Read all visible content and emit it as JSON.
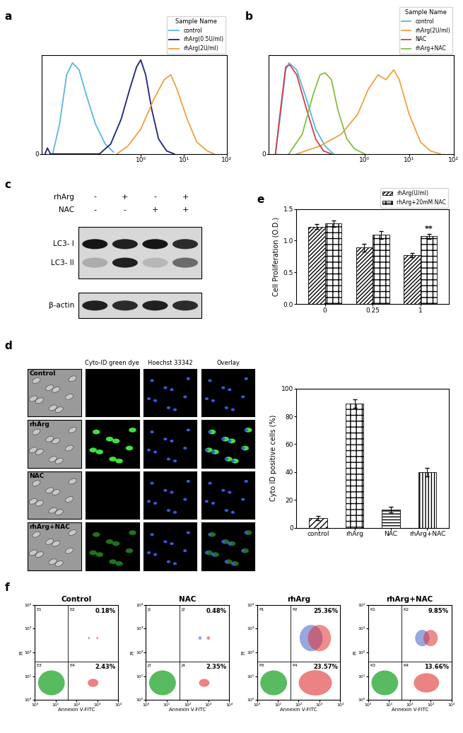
{
  "panel_labels": [
    "a",
    "b",
    "c",
    "d",
    "e",
    "f"
  ],
  "chart_data": [
    {
      "type": "line",
      "log": "x",
      "legend": "upper right",
      "legend_title": "Sample Name",
      "xlim": [
        0.005,
        100
      ],
      "xticks": [
        {
          "value": 1,
          "label": "10⁰"
        },
        {
          "value": 10,
          "label": "10¹"
        },
        {
          "value": 100,
          "label": "10²"
        }
      ],
      "ylim": [
        0,
        100
      ],
      "yticks": [
        0
      ],
      "series": [
        {
          "name": "control",
          "color": "#5bb5e8",
          "x": [
            0.009,
            0.013,
            0.019,
            0.026,
            0.037,
            0.054,
            0.089,
            0.15,
            0.23
          ],
          "values": [
            0,
            30,
            80,
            92,
            85,
            60,
            30,
            10,
            2
          ]
        },
        {
          "name": "rhArg(0.5U/ml)",
          "color": "#1a237e",
          "x": [
            0.006,
            0.0068,
            0.008,
            0.11,
            0.2,
            0.35,
            0.55,
            0.8,
            1.0,
            1.3,
            1.8,
            2.6,
            4,
            6
          ],
          "values": [
            0,
            6,
            0,
            0,
            10,
            35,
            65,
            88,
            95,
            80,
            45,
            15,
            3,
            0
          ]
        },
        {
          "name": "rhArg(2U/ml)",
          "color": "#f0a040",
          "x": [
            0.28,
            0.5,
            1,
            2,
            3.5,
            5,
            7,
            12,
            20,
            35,
            50
          ],
          "values": [
            0,
            8,
            25,
            55,
            75,
            80,
            65,
            35,
            12,
            3,
            0
          ]
        }
      ]
    },
    {
      "type": "line",
      "log": "x",
      "legend": "upper right",
      "legend_title": "Sample Name",
      "xlim": [
        0.007,
        100
      ],
      "xticks": [
        {
          "value": 1,
          "label": "10⁰"
        },
        {
          "value": 10,
          "label": "10¹"
        },
        {
          "value": 100,
          "label": "10²"
        }
      ],
      "ylim": [
        0,
        100
      ],
      "yticks": [
        0
      ],
      "series": [
        {
          "name": "control",
          "color": "#5bb5e8",
          "x": [
            0.01,
            0.013,
            0.017,
            0.02,
            0.03,
            0.05,
            0.08,
            0.13,
            0.2
          ],
          "values": [
            0,
            40,
            85,
            92,
            85,
            55,
            25,
            8,
            0
          ]
        },
        {
          "name": "rhArg(2U/ml)",
          "color": "#f0a040",
          "x": [
            0.03,
            0.1,
            0.3,
            0.7,
            1.2,
            2,
            3,
            4.5,
            6,
            10,
            18,
            30,
            50
          ],
          "values": [
            0,
            8,
            20,
            40,
            65,
            80,
            75,
            85,
            75,
            40,
            12,
            3,
            0
          ]
        },
        {
          "name": "NAC",
          "color": "#d04040",
          "x": [
            0.01,
            0.013,
            0.017,
            0.021,
            0.03,
            0.05,
            0.08,
            0.12,
            0.18
          ],
          "values": [
            0,
            45,
            88,
            90,
            80,
            45,
            15,
            3,
            0
          ]
        },
        {
          "name": "rhArg+NAC",
          "color": "#80c040",
          "x": [
            0.02,
            0.04,
            0.07,
            0.1,
            0.13,
            0.18,
            0.25,
            0.4,
            0.6,
            1
          ],
          "values": [
            0,
            20,
            60,
            80,
            82,
            75,
            45,
            15,
            5,
            0
          ]
        }
      ]
    },
    {
      "type": "bar",
      "y_label": "Cell Proliferation (O.D.)",
      "legend": "upper right",
      "categories": [
        "0",
        "0.25",
        "1"
      ],
      "ylim": [
        0,
        1.5
      ],
      "yticks": [
        {
          "value": 0,
          "label": "0.0"
        },
        {
          "value": 0.5,
          "label": "0.5"
        },
        {
          "value": 1,
          "label": "1.0"
        },
        {
          "value": 1.5,
          "label": "1.5"
        }
      ],
      "series": [
        {
          "name": "rhArg(U/ml)",
          "values": [
            1.22,
            0.89,
            0.77
          ],
          "errors": [
            0.04,
            0.06,
            0.03
          ]
        },
        {
          "name": "rhArg+20mM NAC",
          "values": [
            1.27,
            1.09,
            1.07
          ],
          "errors": [
            0.05,
            0.06,
            0.04
          ]
        }
      ],
      "annotations": [
        {
          "text": "**",
          "category": "1",
          "series": "rhArg+20mM NAC"
        }
      ]
    },
    {
      "type": "bar",
      "y_label": "Cyto ID positive cells (%)",
      "categories": [
        "control",
        "rhArg",
        "NAC",
        "rhArg+NAC"
      ],
      "values": [
        7,
        89,
        13,
        40
      ],
      "errors": [
        1.5,
        3,
        2,
        3
      ],
      "ylim": [
        0,
        100
      ],
      "yticks": [
        0,
        20,
        40,
        60,
        80,
        100
      ]
    },
    {
      "type": "quadrant",
      "title": "Control",
      "x_label": "Annexin V-FITC",
      "y_label": "PI",
      "log": true,
      "xlim": [
        1,
        10000
      ],
      "ylim": [
        1,
        10000
      ],
      "gate": [
        40,
        40
      ],
      "xticks": [
        {
          "value": 1,
          "label": "10⁰"
        },
        {
          "value": 10,
          "label": "10¹"
        },
        {
          "value": 100,
          "label": "10²"
        },
        {
          "value": 1000,
          "label": "10³"
        },
        {
          "value": 10000,
          "label": "10⁴"
        }
      ],
      "yticks": [
        {
          "value": 1,
          "label": "10⁰"
        },
        {
          "value": 10,
          "label": "10¹"
        },
        {
          "value": 100,
          "label": "10²"
        },
        {
          "value": 1000,
          "label": "10³"
        },
        {
          "value": 10000,
          "label": "10⁴"
        }
      ],
      "quadrants": [
        {
          "name": "E1"
        },
        {
          "name": "E2",
          "value": 0.18,
          "value_label": "0.18%"
        },
        {
          "name": "E3"
        },
        {
          "name": "E4",
          "value": 2.43,
          "value_label": "2.43%"
        }
      ]
    },
    {
      "type": "quadrant",
      "title": "NAC",
      "x_label": "Annexin V-FITC",
      "y_label": "PI",
      "log": true,
      "xlim": [
        1,
        10000
      ],
      "ylim": [
        1,
        10000
      ],
      "gate": [
        40,
        40
      ],
      "xticks": [
        {
          "value": 1,
          "label": "10⁰"
        },
        {
          "value": 10,
          "label": "10¹"
        },
        {
          "value": 100,
          "label": "10²"
        },
        {
          "value": 1000,
          "label": "10³"
        },
        {
          "value": 10000,
          "label": "10⁴"
        }
      ],
      "yticks": [
        {
          "value": 1,
          "label": "10⁰"
        },
        {
          "value": 10,
          "label": "10¹"
        },
        {
          "value": 100,
          "label": "10²"
        },
        {
          "value": 1000,
          "label": "10³"
        },
        {
          "value": 10000,
          "label": "10⁴"
        }
      ],
      "quadrants": [
        {
          "name": "J1"
        },
        {
          "name": "J2",
          "value": 0.48,
          "value_label": "0.48%"
        },
        {
          "name": "J3"
        },
        {
          "name": "J4",
          "value": 2.35,
          "value_label": "2.35%"
        }
      ]
    },
    {
      "type": "quadrant",
      "title": "rhArg",
      "x_label": "Annexin V-FITC",
      "y_label": "PI",
      "log": true,
      "xlim": [
        1,
        10000
      ],
      "ylim": [
        1,
        10000
      ],
      "gate": [
        40,
        40
      ],
      "xticks": [
        {
          "value": 1,
          "label": "10⁰"
        },
        {
          "value": 10,
          "label": "10¹"
        },
        {
          "value": 100,
          "label": "10²"
        },
        {
          "value": 1000,
          "label": "10³"
        },
        {
          "value": 10000,
          "label": "10⁴"
        }
      ],
      "yticks": [
        {
          "value": 1,
          "label": "10⁰"
        },
        {
          "value": 10,
          "label": "10¹"
        },
        {
          "value": 100,
          "label": "10²"
        },
        {
          "value": 1000,
          "label": "10³"
        },
        {
          "value": 10000,
          "label": "10⁴"
        }
      ],
      "quadrants": [
        {
          "name": "P1"
        },
        {
          "name": "P2",
          "value": 25.36,
          "value_label": "25.36%"
        },
        {
          "name": "P3"
        },
        {
          "name": "P4",
          "value": 23.57,
          "value_label": "23.57%"
        }
      ]
    },
    {
      "type": "quadrant",
      "title": "rhArg+NAC",
      "x_label": "Annexin V-FITC",
      "y_label": "PI",
      "log": true,
      "xlim": [
        1,
        10000
      ],
      "ylim": [
        1,
        10000
      ],
      "gate": [
        40,
        40
      ],
      "xticks": [
        {
          "value": 1,
          "label": "10⁰"
        },
        {
          "value": 10,
          "label": "10¹"
        },
        {
          "value": 100,
          "label": "10²"
        },
        {
          "value": 1000,
          "label": "10³"
        },
        {
          "value": 10000,
          "label": "10⁴"
        }
      ],
      "yticks": [
        {
          "value": 1,
          "label": "10⁰"
        },
        {
          "value": 10,
          "label": "10¹"
        },
        {
          "value": 100,
          "label": "10²"
        },
        {
          "value": 1000,
          "label": "10³"
        },
        {
          "value": 10000,
          "label": "10⁴"
        }
      ],
      "quadrants": [
        {
          "name": "K1"
        },
        {
          "name": "K2",
          "value": 9.85,
          "value_label": "9.85%"
        },
        {
          "name": "K3"
        },
        {
          "name": "K4",
          "value": 13.66,
          "value_label": "13.66%"
        }
      ]
    }
  ],
  "blot": {
    "rows": [
      {
        "label": "rhArg",
        "signs": [
          "-",
          "+",
          "-",
          "+"
        ]
      },
      {
        "label": "NAC",
        "signs": [
          "-",
          "-",
          "+",
          "+"
        ]
      }
    ],
    "bands": [
      "LC3- I",
      "LC3- II",
      "β-actin"
    ]
  },
  "micrographs": {
    "columns": [
      null,
      "Cyto-ID green dye",
      "Hoechst 33342",
      "Overlay"
    ],
    "rows": [
      "Control",
      "rhArg",
      "NAC",
      "rhArg+NAC"
    ]
  }
}
